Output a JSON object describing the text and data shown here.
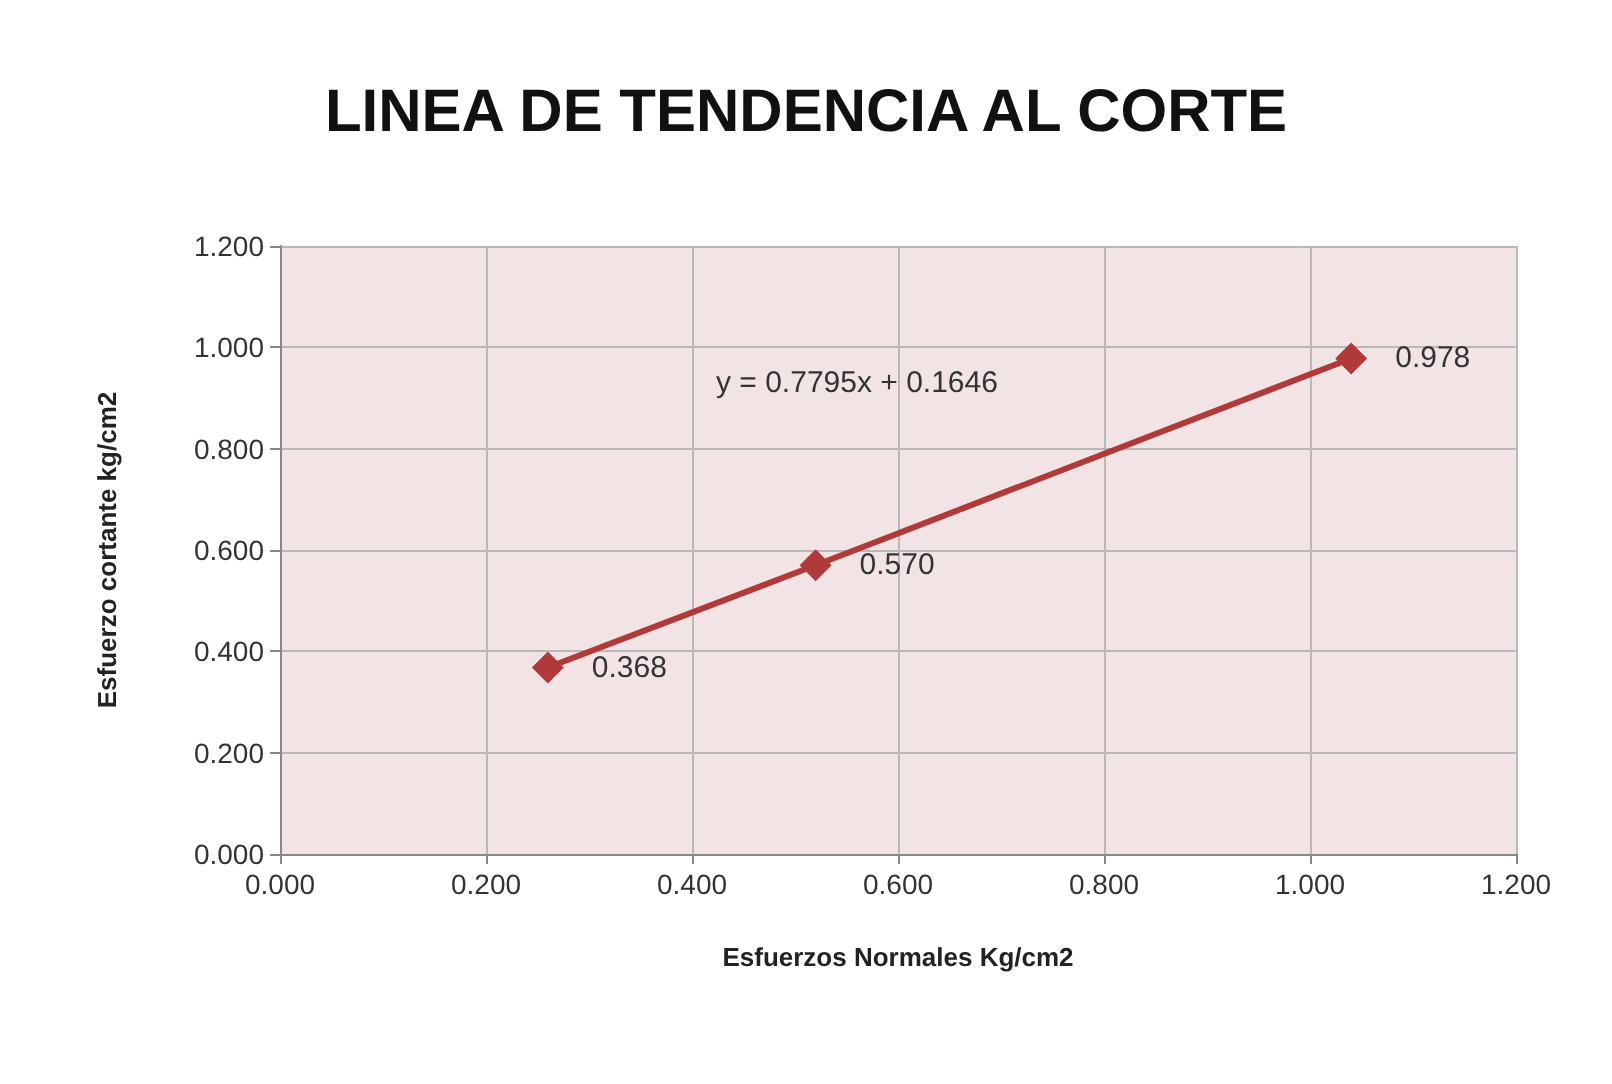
{
  "chart_data": {
    "type": "line",
    "title": "LINEA DE TENDENCIA AL CORTE",
    "xlabel": "Esfuerzos Normales Kg/cm2",
    "ylabel": "Esfuerzo cortante kg/cm2",
    "x": [
      0.26,
      0.52,
      1.04
    ],
    "series": [
      {
        "color": "#b03a3a",
        "values": [
          0.368,
          0.57,
          0.978
        ],
        "value_labels": [
          "0.368",
          "0.570",
          "0.978"
        ]
      }
    ],
    "annotations": [
      "y = 0.7795x + 0.1646"
    ],
    "xlim": [
      0,
      1.2
    ],
    "xticks": [
      {
        "value": 0,
        "label": "0.000"
      },
      {
        "value": 0.2,
        "label": "0.200"
      },
      {
        "value": 0.4,
        "label": "0.400"
      },
      {
        "value": 0.6,
        "label": "0.600"
      },
      {
        "value": 0.8,
        "label": "0.800"
      },
      {
        "value": 1,
        "label": "1.000"
      },
      {
        "value": 1.2,
        "label": "1.200"
      }
    ],
    "ylim": [
      0,
      1.2
    ],
    "yticks": [
      {
        "value": 0,
        "label": "0.000"
      },
      {
        "value": 0.2,
        "label": "0.200"
      },
      {
        "value": 0.4,
        "label": "0.400"
      },
      {
        "value": 0.6,
        "label": "0.600"
      },
      {
        "value": 0.8,
        "label": "0.800"
      },
      {
        "value": 1,
        "label": "1.000"
      },
      {
        "value": 1.2,
        "label": "1.200"
      }
    ],
    "grid": true,
    "marker": "diamond",
    "line_style": "solid"
  }
}
